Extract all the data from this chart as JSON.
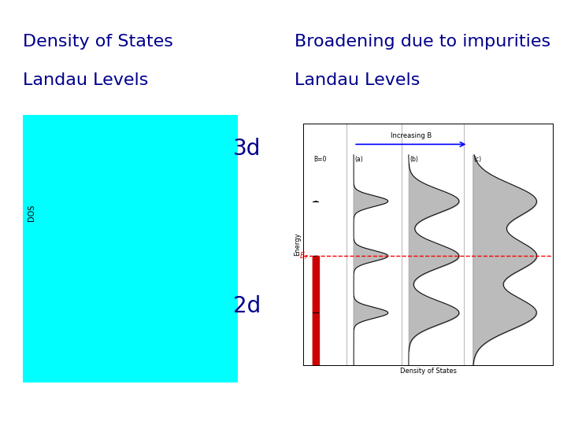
{
  "title_left_line1": "Density of States",
  "title_left_line2": "Landau Levels",
  "title_right_line1": "Broadening due to impurities",
  "title_right_line2": "Landau Levels",
  "title_color": "#00008B",
  "bg_color": "#ffffff",
  "cyan_bg": "#00FFFF",
  "label_3d": "3d",
  "label_2d": "2d",
  "label_color": "#00008B",
  "label_fontsize": 20,
  "title_fontsize": 16
}
